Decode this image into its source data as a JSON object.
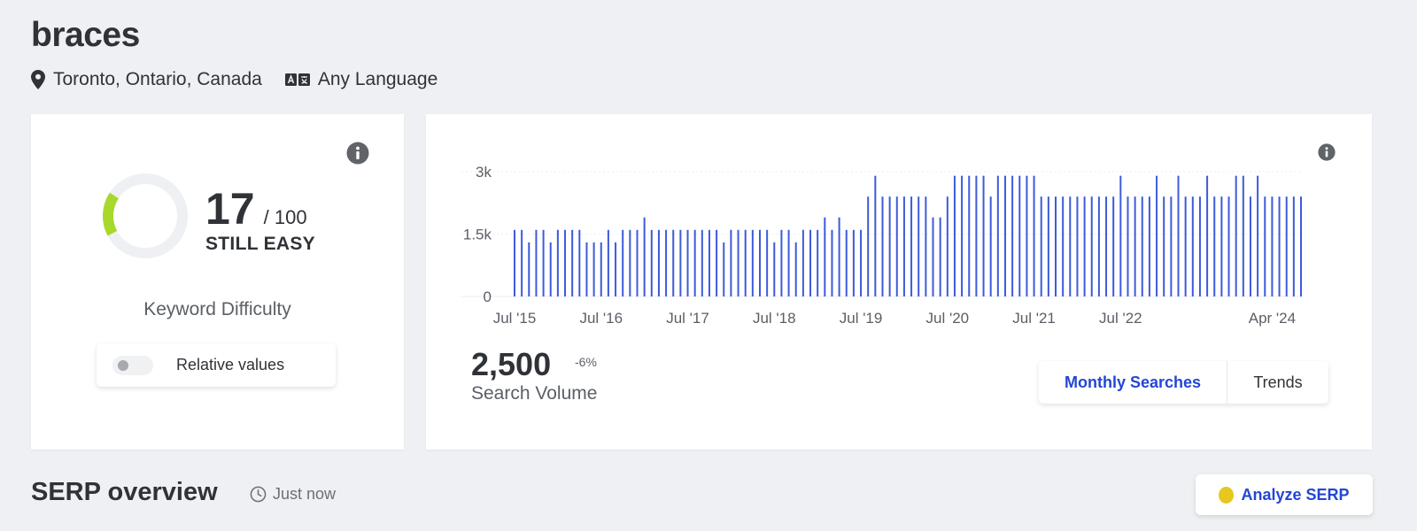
{
  "keyword": "braces",
  "location": {
    "label": "Toronto, Ontario, Canada",
    "icon": "map-pin-icon"
  },
  "language": {
    "label": "Any Language",
    "icon": "translate-icon"
  },
  "difficulty": {
    "score": "17",
    "max": "/ 100",
    "score_value": 17,
    "rating": "STILL EASY",
    "caption": "Keyword Difficulty",
    "ring_color": "#a8d82c",
    "toggle_label": "Relative values"
  },
  "chart_data": {
    "type": "bar",
    "y_ticks": [
      "0",
      "1.5k",
      "3k"
    ],
    "y_tick_values": [
      0,
      1500,
      3000
    ],
    "ylim": [
      0,
      3000
    ],
    "x_tick_labels": [
      "Jul '15",
      "Jul '16",
      "Jul '17",
      "Jul '18",
      "Jul '19",
      "Jul '20",
      "Jul '21",
      "Jul '22",
      "Apr '24"
    ],
    "x_tick_indices": [
      0,
      12,
      24,
      36,
      48,
      60,
      72,
      84,
      105
    ],
    "start_month": "Jul '15",
    "bar_color": "#3d5bd9",
    "values": [
      1600,
      1600,
      1300,
      1600,
      1600,
      1300,
      1600,
      1600,
      1600,
      1600,
      1300,
      1300,
      1300,
      1600,
      1300,
      1600,
      1600,
      1600,
      1900,
      1600,
      1600,
      1600,
      1600,
      1600,
      1600,
      1600,
      1600,
      1600,
      1600,
      1300,
      1600,
      1600,
      1600,
      1600,
      1600,
      1600,
      1300,
      1600,
      1600,
      1300,
      1600,
      1600,
      1600,
      1900,
      1600,
      1900,
      1600,
      1600,
      1600,
      2400,
      2900,
      2400,
      2400,
      2400,
      2400,
      2400,
      2400,
      2400,
      1900,
      1900,
      2400,
      2900,
      2900,
      2900,
      2900,
      2900,
      2400,
      2900,
      2900,
      2900,
      2900,
      2900,
      2900,
      2400,
      2400,
      2400,
      2400,
      2400,
      2400,
      2400,
      2400,
      2400,
      2400,
      2400,
      2900,
      2400,
      2400,
      2400,
      2400,
      2900,
      2400,
      2400,
      2900,
      2400,
      2400,
      2400,
      2900,
      2400,
      2400,
      2400,
      2900,
      2900,
      2400,
      2900,
      2400,
      2400,
      2400,
      2400,
      2400,
      2400
    ]
  },
  "search_volume": {
    "value": "2,500",
    "change": "-6%",
    "caption": "Search Volume"
  },
  "chart_tabs": [
    {
      "label": "Monthly Searches",
      "active": true
    },
    {
      "label": "Trends",
      "active": false
    }
  ],
  "serp": {
    "title": "SERP overview",
    "time": "Just now",
    "button_label": "Analyze SERP"
  }
}
